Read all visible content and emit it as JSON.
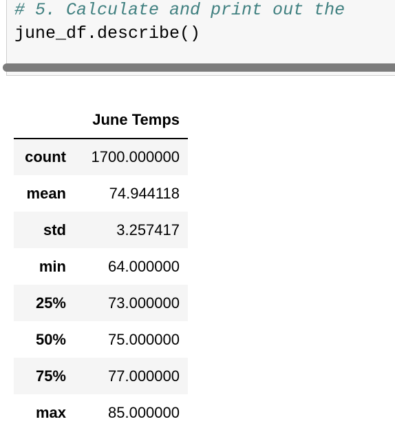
{
  "code": {
    "comment": "# 5. Calculate and print out the",
    "call": "june_df.describe()"
  },
  "table": {
    "column_header": "June Temps",
    "rows": [
      {
        "label": "count",
        "value": "1700.000000"
      },
      {
        "label": "mean",
        "value": "74.944118"
      },
      {
        "label": "std",
        "value": "3.257417"
      },
      {
        "label": "min",
        "value": "64.000000"
      },
      {
        "label": "25%",
        "value": "73.000000"
      },
      {
        "label": "50%",
        "value": "75.000000"
      },
      {
        "label": "75%",
        "value": "77.000000"
      },
      {
        "label": "max",
        "value": "85.000000"
      }
    ]
  }
}
